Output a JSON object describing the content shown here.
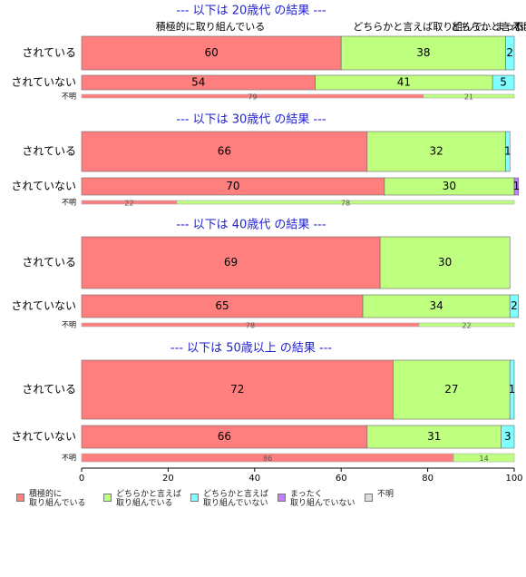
{
  "chart_data": {
    "type": "bar",
    "orientation": "horizontal",
    "stacked": "percent",
    "xlim": [
      0,
      100
    ],
    "x_ticks": [
      "0",
      "20",
      "40",
      "60",
      "80",
      "100"
    ],
    "segment_labels": [
      "積極的に取り組んでいる",
      "どちらかと言えば取り組んで…",
      "どちらかと言えば取り組..",
      "まったく..",
      "不明"
    ],
    "categories": [
      "積極的に取り組んでいる",
      "どちらかと言えば取り組んでいる",
      "どちらかと言えば取り組んでいない",
      "まったく取り組んでいない",
      "不明"
    ],
    "colors": [
      "#ff7f7f",
      "#bfff7f",
      "#7fffff",
      "#bf7fff",
      "#dddddd"
    ],
    "legend": [
      {
        "label": "積極的に\n取り組んでいる",
        "color": "#ff7f7f"
      },
      {
        "label": "どちらかと言えば\n取り組んでいる",
        "color": "#bfff7f"
      },
      {
        "label": "どちらかと言えば\n取り組んでいない",
        "color": "#7fffff"
      },
      {
        "label": "まったく\n取り組んでいない",
        "color": "#bf7fff"
      },
      {
        "label": "不明",
        "color": "#dddddd"
      }
    ],
    "panels": [
      {
        "title": "--- 以下は 20歳代 の結果 ---",
        "rows": [
          {
            "label": "されている",
            "values": [
              60,
              38,
              2,
              0,
              0
            ]
          },
          {
            "label": "されていない",
            "values": [
              54,
              41,
              5,
              0,
              0
            ]
          },
          {
            "label": "不明",
            "values": [
              79,
              21,
              0,
              0,
              0
            ],
            "thin": true
          }
        ]
      },
      {
        "title": "--- 以下は 30歳代 の結果 ---",
        "rows": [
          {
            "label": "されている",
            "values": [
              66,
              32,
              1,
              0,
              0
            ]
          },
          {
            "label": "されていない",
            "values": [
              70,
              30,
              0,
              1,
              0
            ]
          },
          {
            "label": "不明",
            "values": [
              22,
              78,
              0,
              0,
              0
            ],
            "thin": true
          }
        ]
      },
      {
        "title": "--- 以下は 40歳代 の結果 ---",
        "rows": [
          {
            "label": "されている",
            "values": [
              69,
              30,
              0,
              0,
              0
            ]
          },
          {
            "label": "されていない",
            "values": [
              65,
              34,
              2,
              0,
              0
            ]
          },
          {
            "label": "不明",
            "values": [
              78,
              22,
              0,
              0,
              0
            ],
            "thin": true
          }
        ]
      },
      {
        "title": "--- 以下は 50歳以上 の結果 ---",
        "rows": [
          {
            "label": "されている",
            "values": [
              72,
              27,
              1,
              0,
              0
            ]
          },
          {
            "label": "されていない",
            "values": [
              66,
              31,
              3,
              0,
              0
            ]
          },
          {
            "label": "不明",
            "values": [
              86,
              14,
              0,
              0,
              0
            ],
            "thin": true
          }
        ]
      }
    ]
  }
}
